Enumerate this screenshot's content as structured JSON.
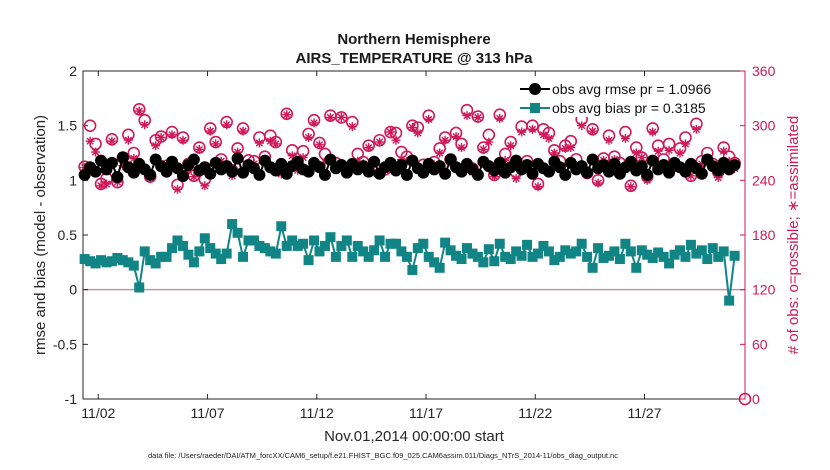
{
  "chart_data": {
    "type": "line",
    "title": "Northern Hemisphere",
    "subtitle": "AIRS_TEMPERATURE @ 313 hPa",
    "xlabel": "Nov.01,2014 00:00:00 start",
    "ylabel": "rmse and bias (model - observation)",
    "ylabel_right": "# of obs: o=possible; ∗=assimilated",
    "footnote": "data file: /Users/raeder/DAI/ATM_forcXX/CAM6_setup/f.e21.FHIST_BGC.f09_025.CAM6assim.011/Diags_NTrS_2014-11/obs_diag_output.nc",
    "ylim": [
      -1,
      2
    ],
    "ylim_right": [
      0,
      360
    ],
    "xlim_days": [
      0.3,
      30.6
    ],
    "x_ticks": [
      {
        "day": 1,
        "label": "11/02"
      },
      {
        "day": 6,
        "label": "11/07"
      },
      {
        "day": 11,
        "label": "11/12"
      },
      {
        "day": 16,
        "label": "11/17"
      },
      {
        "day": 21,
        "label": "11/22"
      },
      {
        "day": 26,
        "label": "11/27"
      }
    ],
    "y_ticks": [
      "-1",
      "-0.5",
      "0",
      "0.5",
      "1",
      "1.5",
      "2"
    ],
    "y_ticks_right": [
      "0",
      "60",
      "120",
      "180",
      "240",
      "300",
      "360"
    ],
    "legend": {
      "position": "top-right",
      "entries": [
        {
          "label": "obs avg rmse pr = 1.0966",
          "color": "#000000",
          "marker": "circle"
        },
        {
          "label": "obs avg bias pr = 0.3185",
          "color": "#118585",
          "marker": "square"
        }
      ]
    },
    "colors": {
      "rmse": "#000000",
      "bias": "#118585",
      "count": "#d0195a",
      "zero": "#b89aa6"
    },
    "time_step_days": 0.25,
    "series": [
      {
        "name": "rmse",
        "axis": "left",
        "values": [
          1.05,
          1.12,
          1.08,
          1.18,
          1.1,
          1.16,
          1.03,
          1.21,
          1.12,
          1.07,
          1.15,
          1.1,
          1.05,
          1.19,
          1.13,
          1.08,
          1.17,
          1.11,
          1.04,
          1.14,
          1.19,
          1.09,
          1.12,
          1.06,
          1.16,
          1.1,
          1.13,
          1.08,
          1.2,
          1.07,
          1.14,
          1.11,
          1.05,
          1.18,
          1.12,
          1.09,
          1.15,
          1.06,
          1.13,
          1.17,
          1.1,
          1.08,
          1.16,
          1.12,
          1.05,
          1.19,
          1.11,
          1.14,
          1.07,
          1.15,
          1.1,
          1.13,
          1.08,
          1.17,
          1.06,
          1.12,
          1.16,
          1.09,
          1.14,
          1.05,
          1.18,
          1.11,
          1.07,
          1.15,
          1.1,
          1.13,
          1.06,
          1.19,
          1.12,
          1.08,
          1.15,
          1.1,
          1.05,
          1.17,
          1.13,
          1.09,
          1.16,
          1.07,
          1.12,
          1.18,
          1.1,
          1.14,
          1.06,
          1.15,
          1.11,
          1.08,
          1.17,
          1.12,
          1.05,
          1.16,
          1.1,
          1.13,
          1.07,
          1.19,
          1.11,
          1.14,
          1.08,
          1.15,
          1.06,
          1.12,
          1.17,
          1.09,
          1.13,
          1.05,
          1.18,
          1.1,
          1.14,
          1.07,
          1.16,
          1.12,
          1.08,
          1.15,
          1.11,
          1.06,
          1.19,
          1.13,
          1.09,
          1.16,
          1.1,
          1.14
        ]
      },
      {
        "name": "bias",
        "axis": "left",
        "values": [
          0.28,
          0.26,
          0.24,
          0.27,
          0.25,
          0.26,
          0.29,
          0.27,
          0.25,
          0.22,
          0.02,
          0.35,
          0.27,
          0.24,
          0.3,
          0.3,
          0.38,
          0.45,
          0.4,
          0.32,
          0.25,
          0.35,
          0.47,
          0.38,
          0.33,
          0.28,
          0.33,
          0.6,
          0.52,
          0.3,
          0.45,
          0.45,
          0.4,
          0.38,
          0.35,
          0.33,
          0.58,
          0.4,
          0.45,
          0.4,
          0.42,
          0.27,
          0.45,
          0.35,
          0.4,
          0.48,
          0.3,
          0.4,
          0.45,
          0.3,
          0.4,
          0.35,
          0.3,
          0.36,
          0.45,
          0.3,
          0.42,
          0.42,
          0.35,
          0.3,
          0.18,
          0.38,
          0.42,
          0.3,
          0.25,
          0.2,
          0.43,
          0.36,
          0.31,
          0.28,
          0.38,
          0.33,
          0.3,
          0.25,
          0.37,
          0.26,
          0.42,
          0.3,
          0.28,
          0.35,
          0.31,
          0.41,
          0.3,
          0.33,
          0.4,
          0.35,
          0.27,
          0.3,
          0.36,
          0.33,
          0.35,
          0.42,
          0.3,
          0.2,
          0.38,
          0.29,
          0.31,
          0.35,
          0.28,
          0.42,
          0.35,
          0.2,
          0.36,
          0.32,
          0.29,
          0.34,
          0.3,
          0.24,
          0.32,
          0.36,
          0.3,
          0.41,
          0.33,
          0.36,
          0.28,
          0.38,
          0.3,
          0.35,
          -0.1,
          0.31
        ]
      },
      {
        "name": "possible",
        "axis": "right",
        "values": [
          255,
          300,
          280,
          236,
          242,
          285,
          238,
          265,
          290,
          270,
          318,
          306,
          244,
          284,
          288,
          256,
          293,
          235,
          287,
          258,
          245,
          276,
          241,
          297,
          282,
          263,
          304,
          251,
          275,
          297,
          262,
          261,
          287,
          266,
          289,
          282,
          254,
          313,
          273,
          257,
          272,
          291,
          306,
          281,
          269,
          311,
          259,
          309,
          253,
          304,
          269,
          260,
          278,
          255,
          284,
          252,
          293,
          292,
          271,
          266,
          300,
          298,
          257,
          311,
          260,
          275,
          287,
          263,
          292,
          280,
          317,
          253,
          310,
          276,
          290,
          246,
          312,
          269,
          282,
          249,
          299,
          261,
          300,
          236,
          296,
          292,
          273,
          261,
          278,
          283,
          263,
          307,
          248,
          296,
          240,
          264,
          289,
          266,
          259,
          293,
          234,
          276,
          265,
          244,
          297,
          278,
          263,
          280,
          256,
          275,
          287,
          245,
          302,
          261,
          270,
          258,
          249,
          276,
          266,
          259
        ]
      },
      {
        "name": "assimilated",
        "axis": "right",
        "values": [
          254,
          283,
          271,
          234,
          236,
          283,
          238,
          256,
          284,
          264,
          316,
          301,
          243,
          278,
          287,
          252,
          290,
          230,
          284,
          251,
          244,
          274,
          234,
          294,
          280,
          261,
          301,
          245,
          271,
          294,
          258,
          258,
          281,
          259,
          283,
          280,
          247,
          312,
          267,
          251,
          265,
          287,
          303,
          279,
          260,
          309,
          252,
          309,
          252,
          299,
          261,
          258,
          276,
          249,
          282,
          251,
          293,
          284,
          263,
          261,
          298,
          292,
          251,
          307,
          257,
          270,
          284,
          258,
          288,
          276,
          311,
          249,
          309,
          274,
          282,
          244,
          308,
          262,
          278,
          242,
          293,
          256,
          296,
          233,
          290,
          286,
          270,
          256,
          275,
          276,
          256,
          300,
          247,
          294,
          237,
          262,
          284,
          263,
          250,
          286,
          233,
          270,
          265,
          240,
          293,
          272,
          254,
          273,
          255,
          270,
          280,
          245,
          296,
          258,
          264,
          256,
          243,
          272,
          261,
          253
        ]
      }
    ]
  }
}
